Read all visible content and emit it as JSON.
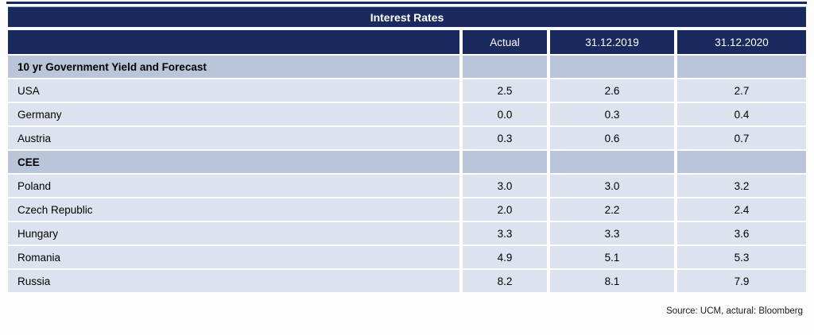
{
  "chart_data": {
    "type": "table",
    "title": "Interest Rates",
    "columns": [
      "",
      "Actual",
      "31.12.2019",
      "31.12.2020"
    ],
    "sections": [
      {
        "header": "10 yr Government Yield and Forecast",
        "rows": [
          [
            "USA",
            "2.5",
            "2.6",
            "2.7"
          ],
          [
            "Germany",
            "0.0",
            "0.3",
            "0.4"
          ],
          [
            "Austria",
            "0.3",
            "0.6",
            "0.7"
          ]
        ]
      },
      {
        "header": "CEE",
        "rows": [
          [
            "Poland",
            "3.0",
            "3.0",
            "3.2"
          ],
          [
            "Czech Republic",
            "2.0",
            "2.2",
            "2.4"
          ],
          [
            "Hungary",
            "3.3",
            "3.3",
            "3.6"
          ],
          [
            "Romania",
            "4.9",
            "5.1",
            "5.3"
          ],
          [
            "Russia",
            "8.2",
            "8.1",
            "7.9"
          ]
        ]
      }
    ],
    "source": "Source: UCM, actural: Bloomberg"
  },
  "colors": {
    "navy": "#1b2a5e",
    "section_bg": "#b9c6da",
    "row_bg": "#dde3ee",
    "header_text": "#ffffff",
    "text": "#000000"
  }
}
